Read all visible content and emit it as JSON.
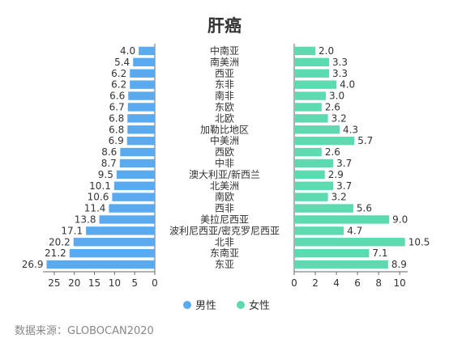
{
  "title": "肝癌",
  "source": "数据来源：GLOBOCAN2020",
  "colors": {
    "male": "#5aaaf0",
    "female": "#5ddab0",
    "axis": "#666666"
  },
  "chart_data": {
    "type": "bar",
    "orientation": "horizontal-butterfly",
    "categories": [
      "中南亚",
      "南美洲",
      "西亚",
      "东非",
      "南非",
      "东欧",
      "北欧",
      "加勒比地区",
      "中美洲",
      "西欧",
      "中非",
      "澳大利亚/新西兰",
      "北美洲",
      "南欧",
      "西非",
      "美拉尼西亚",
      "波利尼西亚/密克罗尼西亚",
      "北非",
      "东南亚",
      "东亚"
    ],
    "series": [
      {
        "name": "男性",
        "side": "left",
        "values": [
          4.0,
          5.4,
          6.2,
          6.2,
          6.6,
          6.7,
          6.8,
          6.8,
          6.9,
          8.6,
          8.7,
          9.5,
          10.1,
          10.6,
          11.4,
          13.8,
          17.1,
          20.2,
          21.2,
          26.9
        ]
      },
      {
        "name": "女性",
        "side": "right",
        "values": [
          2.0,
          3.3,
          3.3,
          4.0,
          3.0,
          2.6,
          3.2,
          4.3,
          5.7,
          2.6,
          3.7,
          2.9,
          3.7,
          3.2,
          5.6,
          9.0,
          4.7,
          10.5,
          7.1,
          8.9
        ]
      }
    ],
    "left_axis": {
      "ticks": [
        25,
        20,
        15,
        10,
        5,
        0
      ],
      "max": 27.4,
      "reversed": true
    },
    "right_axis": {
      "ticks": [
        0,
        2,
        4,
        6,
        8,
        10
      ],
      "max": 10.6
    },
    "legend": {
      "position": "bottom",
      "items": [
        "男性",
        "女性"
      ]
    }
  }
}
